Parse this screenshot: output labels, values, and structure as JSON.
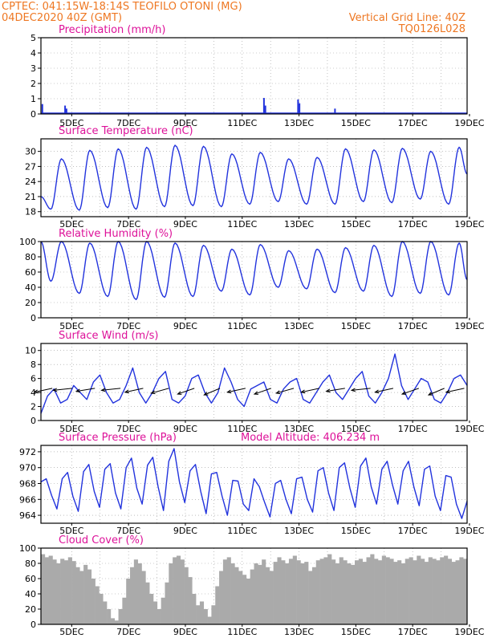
{
  "header": {
    "line1": "CPTEC:   041:15W-18:14S   TEOFILO OTONI (MG)",
    "line2": "04DEC2020 40Z (GMT)",
    "grid_note": "Vertical Grid Line: 40Z",
    "code": "TQ0126L028"
  },
  "colors": {
    "header": "#ee7722",
    "title": "#dd1199",
    "line": "#2233dd",
    "bar": "#2233dd",
    "cloud": "#aaaaaa",
    "wind_arrow": "#000000"
  },
  "x_labels": [
    "5DEC",
    "7DEC",
    "9DEC",
    "11DEC",
    "13DEC",
    "15DEC",
    "17DEC",
    "19DEC"
  ],
  "chart_data": [
    {
      "id": "precip",
      "type": "bar",
      "title": "Precipitation (mm/h)",
      "ylim": [
        0,
        5
      ],
      "yticks": [
        "0",
        "1",
        "2",
        "3",
        "4",
        "5"
      ],
      "x_range_days": [
        4,
        19
      ],
      "grid": true,
      "events": [
        {
          "day": 4.05,
          "value": 0.65
        },
        {
          "day": 4.85,
          "value": 0.55
        },
        {
          "day": 4.9,
          "value": 0.35
        },
        {
          "day": 11.85,
          "value": 1.05
        },
        {
          "day": 11.9,
          "value": 0.55
        },
        {
          "day": 13.05,
          "value": 0.95
        },
        {
          "day": 13.1,
          "value": 0.7
        },
        {
          "day": 14.35,
          "value": 0.35
        }
      ]
    },
    {
      "id": "temp",
      "type": "line",
      "title": "Surface Temperature (nC)",
      "ylim": [
        17,
        32.5
      ],
      "yticks": [
        "18",
        "21",
        "24",
        "27",
        "30"
      ],
      "x_range_days": [
        4,
        19
      ],
      "grid": true,
      "daily": [
        {
          "max": 28.5,
          "min": 18.5
        },
        {
          "max": 30.2,
          "min": 18.3
        },
        {
          "max": 30.5,
          "min": 18.8
        },
        {
          "max": 30.8,
          "min": 18.5
        },
        {
          "max": 31.2,
          "min": 19.0
        },
        {
          "max": 31.0,
          "min": 19.2
        },
        {
          "max": 29.5,
          "min": 19.0
        },
        {
          "max": 29.8,
          "min": 19.5
        },
        {
          "max": 28.5,
          "min": 20.0
        },
        {
          "max": 28.8,
          "min": 19.5
        },
        {
          "max": 30.5,
          "min": 19.5
        },
        {
          "max": 30.3,
          "min": 20.0
        },
        {
          "max": 30.6,
          "min": 19.8
        },
        {
          "max": 30.0,
          "min": 20.5
        },
        {
          "max": 30.8,
          "min": 19.5
        }
      ],
      "start": 21.0,
      "end": 25.5
    },
    {
      "id": "rh",
      "type": "line",
      "title": "Relative Humidity (%)",
      "ylim": [
        0,
        100
      ],
      "yticks": [
        "0",
        "20",
        "40",
        "60",
        "80",
        "100"
      ],
      "x_range_days": [
        4,
        19
      ],
      "grid": true,
      "daily": [
        {
          "max": 100,
          "min": 48
        },
        {
          "max": 98,
          "min": 32
        },
        {
          "max": 100,
          "min": 28
        },
        {
          "max": 100,
          "min": 24
        },
        {
          "max": 98,
          "min": 27
        },
        {
          "max": 95,
          "min": 28
        },
        {
          "max": 90,
          "min": 35
        },
        {
          "max": 96,
          "min": 30
        },
        {
          "max": 88,
          "min": 40
        },
        {
          "max": 90,
          "min": 38
        },
        {
          "max": 92,
          "min": 33
        },
        {
          "max": 95,
          "min": 35
        },
        {
          "max": 100,
          "min": 28
        },
        {
          "max": 100,
          "min": 32
        },
        {
          "max": 98,
          "min": 30
        }
      ],
      "start": 100,
      "end": 50
    },
    {
      "id": "wind",
      "type": "line",
      "title": "Surface Wind (m/s)",
      "ylim": [
        0,
        11
      ],
      "yticks": [
        "0",
        "2",
        "4",
        "6",
        "8",
        "10"
      ],
      "x_range_days": [
        4,
        19
      ],
      "grid": true,
      "values": [
        1.0,
        3.5,
        4.5,
        2.5,
        3.0,
        5.0,
        4.0,
        3.0,
        5.5,
        6.5,
        4.0,
        2.5,
        3.0,
        5.0,
        7.5,
        4.0,
        2.5,
        4.0,
        6.0,
        7.0,
        3.0,
        2.5,
        3.5,
        6.0,
        6.5,
        4.0,
        2.5,
        4.0,
        7.5,
        5.5,
        3.0,
        2.0,
        4.5,
        5.0,
        5.5,
        3.0,
        2.5,
        4.5,
        5.5,
        6.0,
        3.0,
        2.5,
        4.0,
        5.5,
        6.5,
        4.0,
        3.0,
        4.5,
        6.0,
        7.0,
        3.5,
        2.5,
        4.0,
        6.0,
        9.5,
        5.0,
        3.0,
        4.5,
        6.0,
        5.5,
        3.0,
        2.5,
        4.0,
        6.0,
        6.5,
        5.0
      ],
      "arrow_days": [
        4.4,
        5.1,
        5.9,
        6.8,
        7.6,
        8.5,
        9.4,
        10.3,
        11.2,
        12.1,
        12.9,
        13.8,
        14.7,
        15.6,
        16.4,
        17.3,
        18.2,
        18.9
      ],
      "arrow_angles": [
        200,
        190,
        195,
        190,
        200,
        205,
        210,
        215,
        200,
        210,
        205,
        200,
        195,
        190,
        200,
        210,
        215,
        200
      ]
    },
    {
      "id": "pressure",
      "type": "line",
      "title": "Surface Pressure (hPa)",
      "subtitle": "Model Altitude: 406.234 m",
      "ylim": [
        963,
        972.8
      ],
      "yticks": [
        "964",
        "966",
        "968",
        "970",
        "972"
      ],
      "x_range_days": [
        4,
        19
      ],
      "grid": true,
      "values": [
        968.2,
        968.6,
        966.5,
        964.8,
        968.6,
        969.4,
        966.4,
        964.5,
        969.5,
        970.4,
        967.0,
        965.0,
        969.8,
        970.5,
        966.8,
        964.8,
        970.0,
        971.2,
        967.4,
        965.4,
        970.3,
        971.3,
        967.6,
        964.6,
        970.8,
        972.4,
        968.2,
        965.6,
        969.6,
        970.4,
        967.0,
        964.2,
        969.2,
        969.4,
        966.4,
        964.0,
        968.4,
        968.3,
        965.4,
        964.6,
        968.6,
        967.6,
        965.6,
        963.8,
        968.0,
        968.4,
        966.0,
        964.2,
        968.6,
        968.8,
        966.0,
        964.4,
        969.6,
        970.0,
        966.8,
        964.6,
        970.0,
        970.6,
        967.4,
        965.0,
        970.2,
        971.2,
        967.6,
        965.4,
        969.8,
        970.8,
        967.8,
        965.4,
        969.6,
        970.8,
        967.6,
        965.2,
        969.8,
        970.2,
        966.4,
        964.6,
        969.0,
        968.8,
        965.4,
        963.6,
        965.8
      ]
    },
    {
      "id": "cloud",
      "type": "area",
      "title": "Cloud Cover (%)",
      "ylim": [
        0,
        100
      ],
      "yticks": [
        "0",
        "20",
        "40",
        "60",
        "80",
        "100"
      ],
      "x_range_days": [
        4,
        19
      ],
      "grid": true,
      "values": [
        92,
        88,
        90,
        85,
        80,
        86,
        84,
        88,
        83,
        75,
        70,
        78,
        72,
        60,
        50,
        40,
        30,
        20,
        8,
        5,
        20,
        35,
        60,
        75,
        85,
        80,
        70,
        55,
        40,
        30,
        20,
        35,
        55,
        80,
        88,
        90,
        85,
        75,
        62,
        40,
        25,
        30,
        20,
        10,
        25,
        50,
        70,
        85,
        88,
        80,
        75,
        70,
        65,
        60,
        72,
        80,
        78,
        85,
        75,
        70,
        82,
        88,
        84,
        80,
        86,
        90,
        84,
        80,
        82,
        70,
        75,
        84,
        86,
        88,
        92,
        85,
        80,
        88,
        84,
        80,
        78,
        84,
        86,
        82,
        88,
        92,
        86,
        84,
        90,
        88,
        86,
        82,
        84,
        80,
        86,
        88,
        84,
        90,
        86,
        82,
        88,
        86,
        84,
        88,
        90,
        86,
        82,
        84,
        88,
        86
      ]
    }
  ]
}
